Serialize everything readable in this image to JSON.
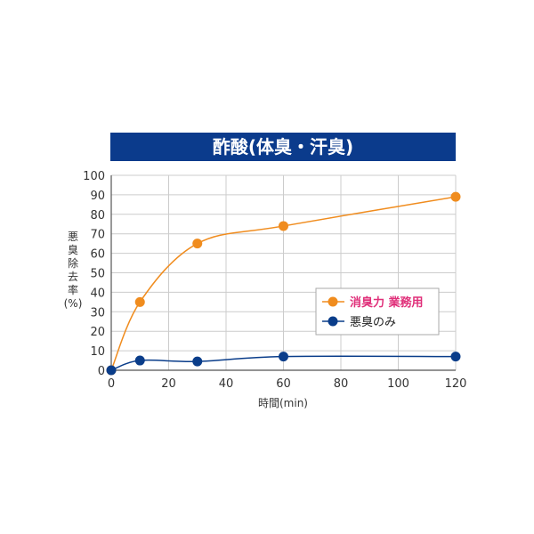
{
  "chart_data": {
    "type": "line",
    "title": "酢酸(体臭・汗臭)",
    "xlabel": "時間(min)",
    "ylabel_lines": [
      "悪",
      "臭",
      "除",
      "去",
      "率",
      "(%)"
    ],
    "xlim": [
      0,
      120
    ],
    "ylim": [
      0,
      100
    ],
    "x_ticks": [
      0,
      20,
      40,
      60,
      80,
      100,
      120
    ],
    "y_ticks": [
      0,
      10,
      20,
      30,
      40,
      50,
      60,
      70,
      80,
      90,
      100
    ],
    "grid": true,
    "legend_position": "right",
    "series": [
      {
        "name": "消臭力 業務用",
        "color": "#f08c1e",
        "name_color": "#e0307a",
        "x": [
          0,
          10,
          30,
          60,
          120
        ],
        "y": [
          0,
          35,
          65,
          74,
          89
        ]
      },
      {
        "name": "悪臭のみ",
        "color": "#0a3d8a",
        "name_color": "#222222",
        "x": [
          0,
          10,
          30,
          60,
          120
        ],
        "y": [
          0,
          5,
          4.5,
          7,
          7
        ]
      }
    ],
    "colors": {
      "title_bg": "#0b3b8c",
      "grid": "#cccccc",
      "axis": "#555555"
    }
  }
}
